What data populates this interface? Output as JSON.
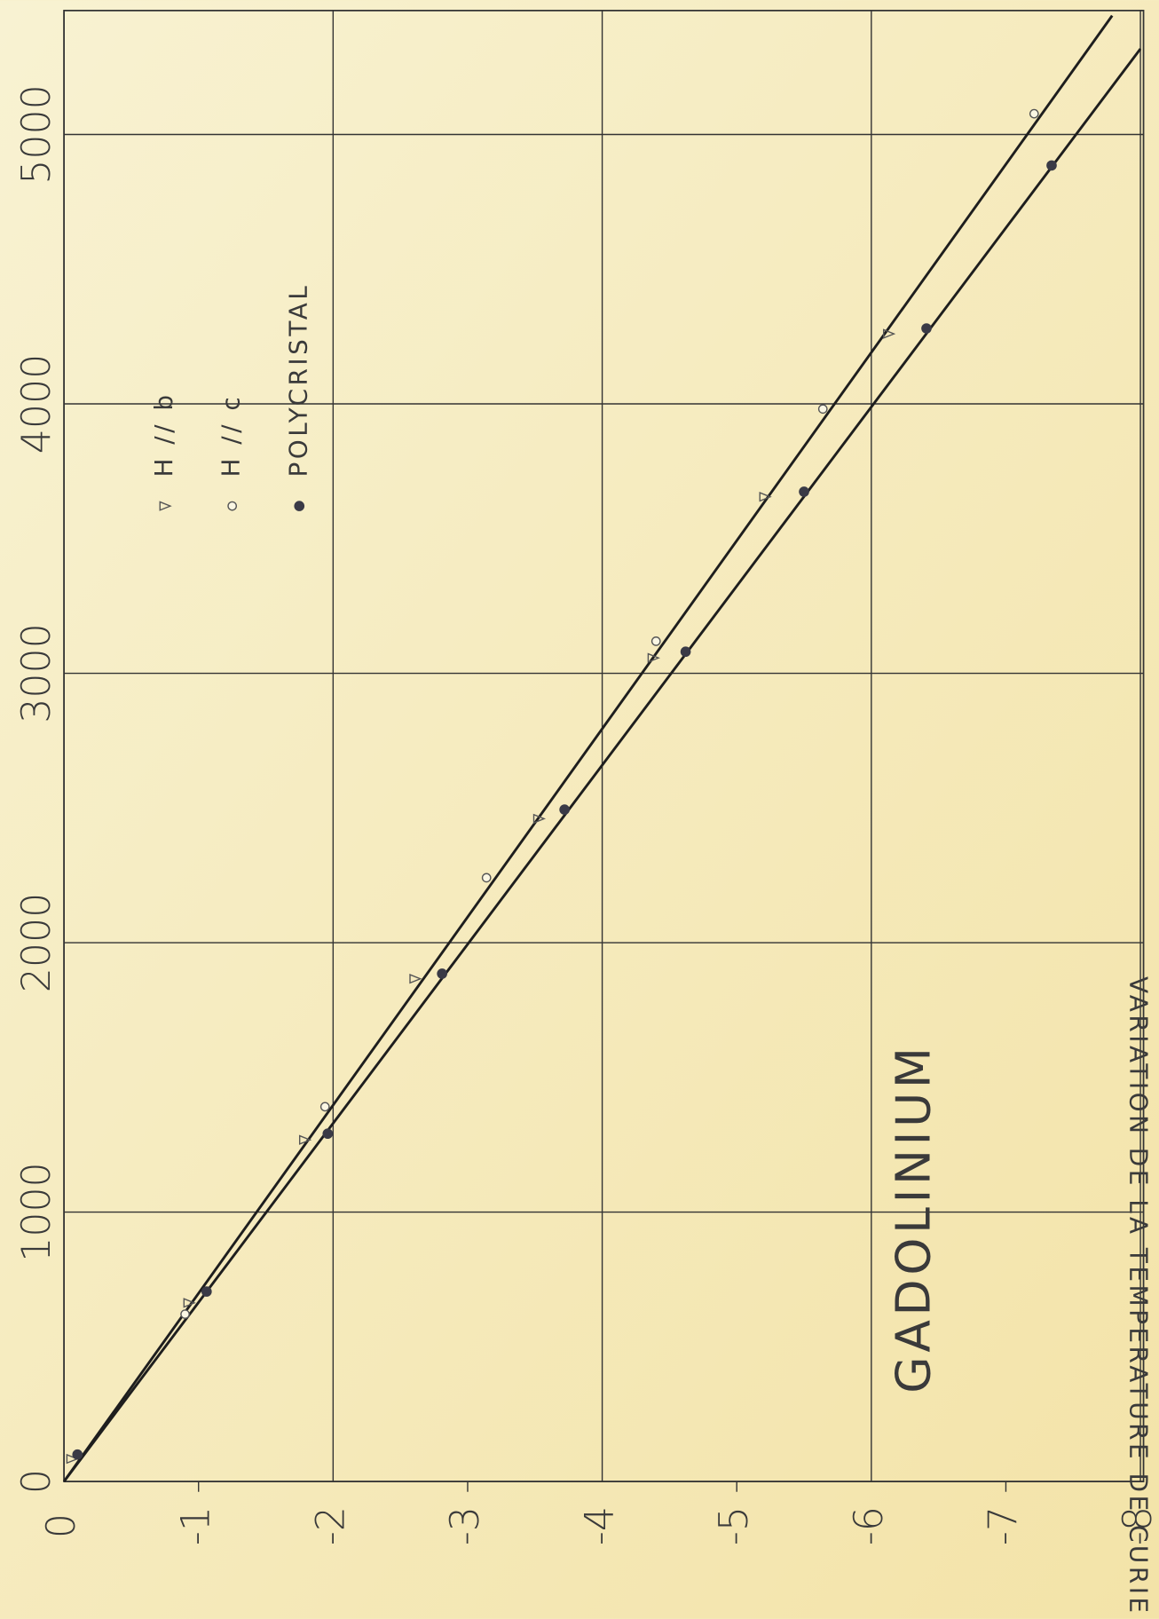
{
  "chart_data": {
    "type": "scatter",
    "annotation": "GADOLINIUM",
    "ylabel": "VARIATION DE LA TEMPERATURE DE CURIE (°K)",
    "xlim": [
      0,
      5460
    ],
    "xticks": [
      0,
      1000,
      2000,
      3000,
      4000,
      5000
    ],
    "ylim": [
      0,
      -8
    ],
    "yticks": [
      0,
      -1,
      -2,
      -3,
      -4,
      -5,
      -6,
      -7,
      -8
    ],
    "grid": true,
    "series": [
      {
        "name": "H // b",
        "marker": "triangle",
        "color": "#555555",
        "x": [
          84,
          663,
          1268,
          1866,
          2460,
          3057,
          3655,
          4260
        ],
        "values": [
          -0.06,
          -0.93,
          -1.79,
          -2.61,
          -3.53,
          -4.38,
          -5.21,
          -6.13
        ]
      },
      {
        "name": "H // c",
        "marker": "circle",
        "color": "#555555",
        "x": [
          621,
          1391,
          2241,
          3119,
          3981,
          5077
        ],
        "values": [
          -0.9,
          -1.94,
          -3.14,
          -4.4,
          -5.64,
          -7.21
        ]
      },
      {
        "name": "POLYCRISTAL",
        "marker": "dot",
        "color": "#3a3a46",
        "x": [
          100,
          705,
          1291,
          1885,
          2494,
          3080,
          3674,
          4280,
          4885
        ],
        "values": [
          -0.1,
          -1.06,
          -1.96,
          -2.81,
          -3.72,
          -4.62,
          -5.5,
          -6.41,
          -7.34
        ]
      }
    ],
    "fit_lines": [
      {
        "color": "#1e1e1e",
        "x": [
          0,
          5441
        ],
        "values": [
          0,
          -7.79
        ]
      },
      {
        "color": "#1e1e1e",
        "x": [
          0,
          5318
        ],
        "values": [
          0,
          -8
        ]
      }
    ]
  }
}
